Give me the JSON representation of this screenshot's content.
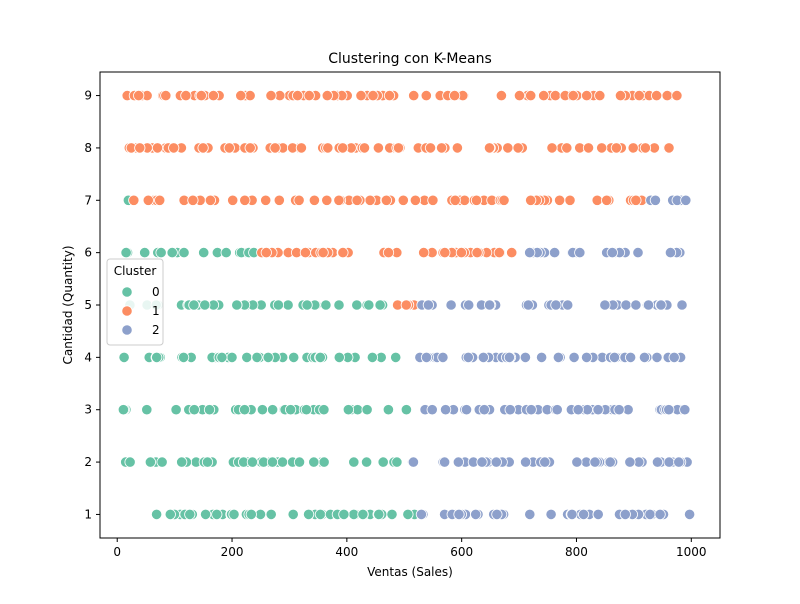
{
  "chart_data": {
    "type": "scatter",
    "title": "Clustering con K-Means",
    "xlabel": "Ventas (Sales)",
    "ylabel": "Cantidad (Quantity)",
    "xlim": [
      -30,
      1050
    ],
    "ylim": [
      0.55,
      9.45
    ],
    "xticks": [
      0,
      200,
      400,
      600,
      800,
      1000
    ],
    "yticks": [
      1,
      2,
      3,
      4,
      5,
      6,
      7,
      8,
      9
    ],
    "grid": false,
    "legend": {
      "title": "Cluster",
      "placement": "center-left",
      "entries": [
        {
          "label": "0",
          "color": "#66c2a5"
        },
        {
          "label": "1",
          "color": "#fc8d62"
        },
        {
          "label": "2",
          "color": "#8da0cb"
        }
      ]
    },
    "series": [
      {
        "name": "0",
        "color": "#66c2a5",
        "segments": [
          {
            "y": 1,
            "x_min": 12,
            "x_max": 520
          },
          {
            "y": 2,
            "x_min": 12,
            "x_max": 510
          },
          {
            "y": 3,
            "x_min": 8,
            "x_max": 505
          },
          {
            "y": 4,
            "x_min": 8,
            "x_max": 500
          },
          {
            "y": 5,
            "x_min": 8,
            "x_max": 470
          },
          {
            "y": 6,
            "x_min": 8,
            "x_max": 240
          },
          {
            "y": 7,
            "x_min": 15,
            "x_max": 20
          }
        ]
      },
      {
        "name": "1",
        "color": "#fc8d62",
        "segments": [
          {
            "y": 5,
            "x_min": 470,
            "x_max": 530
          },
          {
            "y": 6,
            "x_min": 240,
            "x_max": 710
          },
          {
            "y": 7,
            "x_min": 25,
            "x_max": 920
          },
          {
            "y": 8,
            "x_min": 8,
            "x_max": 998
          },
          {
            "y": 9,
            "x_min": 12,
            "x_max": 998
          }
        ]
      },
      {
        "name": "2",
        "color": "#8da0cb",
        "segments": [
          {
            "y": 1,
            "x_min": 520,
            "x_max": 998
          },
          {
            "y": 2,
            "x_min": 510,
            "x_max": 998
          },
          {
            "y": 3,
            "x_min": 505,
            "x_max": 998
          },
          {
            "y": 4,
            "x_min": 500,
            "x_max": 998
          },
          {
            "y": 5,
            "x_min": 530,
            "x_max": 998
          },
          {
            "y": 6,
            "x_min": 715,
            "x_max": 998
          },
          {
            "y": 7,
            "x_min": 925,
            "x_max": 998
          }
        ]
      }
    ],
    "points_per_unit_x": 0.085
  }
}
